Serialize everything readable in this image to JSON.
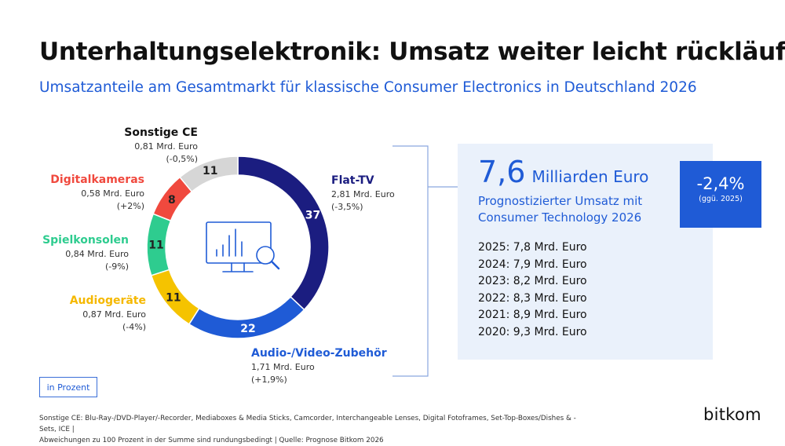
{
  "title": "Unterhaltungselektronik: Umsatz weiter leicht rückläufig",
  "subtitle": "Umsatzanteile am Gesamtmarkt für klassische Consumer Electronics in Deutschland 2026",
  "chart_data": {
    "type": "pie",
    "donut": true,
    "unit_label": "in Prozent",
    "segments": [
      {
        "name": "Flat-TV",
        "value": 37,
        "amount": "2,81 Mrd. Euro",
        "change": "(-3,5%)",
        "color": "#1b1d80"
      },
      {
        "name": "Audio-/Video-Zubehör",
        "value": 22,
        "amount": "1,71 Mrd. Euro",
        "change": "(+1,9%)",
        "color": "#1f5bd6"
      },
      {
        "name": "Audiogeräte",
        "value": 11,
        "amount": "0,87 Mrd. Euro",
        "change": "(-4%)",
        "color": "#f5c300"
      },
      {
        "name": "Spielkonsolen",
        "value": 11,
        "amount": "0,84 Mrd. Euro",
        "change": "(-9%)",
        "color": "#2ecc8f"
      },
      {
        "name": "Digitalkameras",
        "value": 8,
        "amount": "0,58 Mrd. Euro",
        "change": "(+2%)",
        "color": "#f0493e"
      },
      {
        "name": "Sonstige CE",
        "value": 11,
        "amount": "0,81 Mrd. Euro",
        "change": "(-0,5%)",
        "color": "#d6d6d6"
      }
    ]
  },
  "total": {
    "value": "7,6",
    "unit": "Milliarden Euro",
    "description": "Prognostizierter Umsatz mit Consumer Technology 2026"
  },
  "change_badge": {
    "value": "-2,4%",
    "note": "(ggü. 2025)"
  },
  "history": [
    "2025: 7,8 Mrd. Euro",
    "2024: 7,9 Mrd. Euro",
    "2023: 8,2 Mrd. Euro",
    "2022: 8,3 Mrd. Euro",
    "2021: 8,9 Mrd. Euro",
    "2020: 9,3 Mrd. Euro"
  ],
  "footnote": [
    "Sonstige CE: Blu-Ray-/DVD-Player/-Recorder, Mediaboxes & Media Sticks, Camcorder, Interchangeable Lenses, Digital Fotoframes, Set-Top-Boxes/Dishes & -Sets, ICE |",
    "Abweichungen zu 100 Prozent in der Summe sind rundungsbedingt | Quelle: Prognose Bitkom 2026"
  ],
  "logo": "bitkom",
  "icon": "monitor-chart-search-icon"
}
